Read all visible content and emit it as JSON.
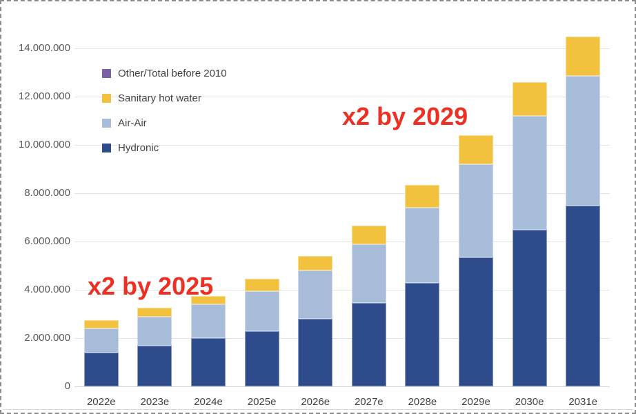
{
  "chart_data": {
    "type": "bar",
    "stacked": true,
    "title": "",
    "xlabel": "",
    "ylabel": "",
    "categories": [
      "2022e",
      "2023e",
      "2024e",
      "2025e",
      "2026e",
      "2027e",
      "2028e",
      "2029e",
      "2030e",
      "2031e"
    ],
    "series": [
      {
        "name": "Hydronic",
        "color": "#2E4C8C",
        "values": [
          1400000,
          1700000,
          2000000,
          2300000,
          2800000,
          3450000,
          4300000,
          5350000,
          6500000,
          7500000
        ]
      },
      {
        "name": "Air-Air",
        "color": "#A6BCD8",
        "values": [
          1000000,
          1200000,
          1400000,
          1650000,
          2000000,
          2450000,
          3100000,
          3850000,
          4700000,
          5350000
        ]
      },
      {
        "name": "Sanitary hot water",
        "color": "#F2C13D",
        "values": [
          350000,
          350000,
          350000,
          500000,
          600000,
          750000,
          950000,
          1200000,
          1400000,
          1650000
        ]
      },
      {
        "name": "Other/Total before 2010",
        "color": "#7C60A5",
        "values": [
          0,
          0,
          0,
          0,
          0,
          0,
          0,
          0,
          0,
          0
        ]
      }
    ],
    "legend": [
      {
        "label": "Other/Total before 2010",
        "color": "#7C60A5"
      },
      {
        "label": "Sanitary hot water",
        "color": "#F2C13D"
      },
      {
        "label": "Air-Air",
        "color": "#A6BCD8"
      },
      {
        "label": "Hydronic",
        "color": "#2E4C8C"
      }
    ],
    "legend_position": "top-left-inside",
    "grid": true,
    "ylim": [
      0,
      14000000
    ],
    "ytick_step": 2000000,
    "yticks": [
      "0",
      "2.000.000",
      "4.000.000",
      "6.000.000",
      "8.000.000",
      "10.000.000",
      "12.000.000",
      "14.000.000"
    ]
  },
  "annotations": [
    {
      "text": "x2 by 2025",
      "color": "#ED3024"
    },
    {
      "text": "x2 by 2029",
      "color": "#ED3024"
    }
  ]
}
